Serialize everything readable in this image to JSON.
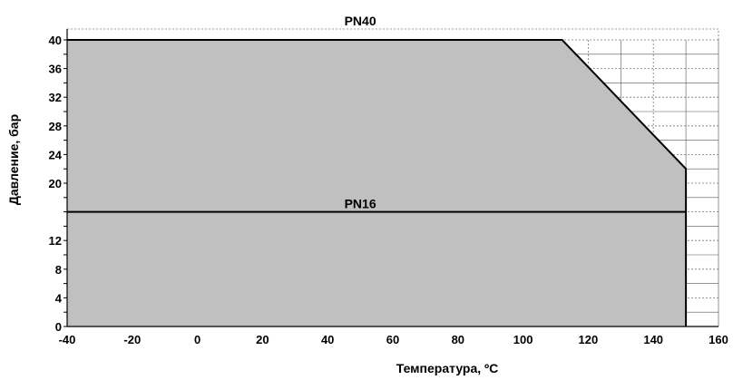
{
  "chart_data": {
    "type": "area",
    "title": "",
    "xlabel": "Температура, ºС",
    "ylabel": "Давление, бар",
    "xlim": [
      -40,
      160
    ],
    "ylim": [
      0,
      40
    ],
    "x_ticks": [
      -40,
      -20,
      0,
      20,
      40,
      60,
      80,
      100,
      120,
      140,
      160
    ],
    "y_ticks": [
      0,
      4,
      8,
      12,
      20,
      24,
      28,
      32,
      36,
      40
    ],
    "grid": true,
    "series": [
      {
        "name": "PN40",
        "x": [
          -40,
          112,
          150,
          150
        ],
        "y": [
          40,
          40,
          22,
          0
        ],
        "fill_color": "#c0c0c0",
        "line_color": "#000000"
      },
      {
        "name": "PN16",
        "x": [
          -40,
          150
        ],
        "y": [
          16,
          16
        ],
        "line_color": "#000000"
      }
    ]
  }
}
